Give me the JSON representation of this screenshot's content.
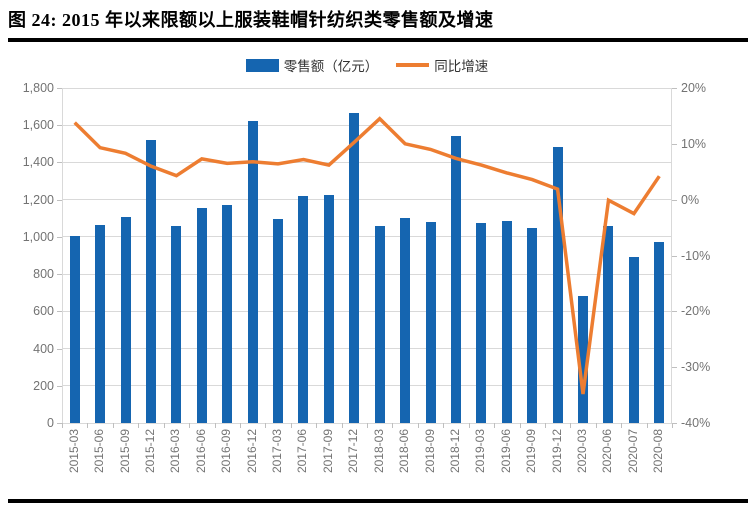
{
  "figure": {
    "title": "图 24: 2015 年以来限额以上服装鞋帽针纺织类零售额及增速"
  },
  "legend": {
    "bar_label": "零售额（亿元）",
    "line_label": "同比增速"
  },
  "colors": {
    "bar": "#1565b0",
    "line": "#ed7d31",
    "gridline": "#d9d9d9",
    "tick": "#bfbfbf",
    "axis_text": "#737373",
    "title_text": "#000000",
    "rule": "#000000"
  },
  "chart_data": {
    "type": "bar",
    "subtype": "bar+line combo, dual axis",
    "title": "图 24: 2015 年以来限额以上服装鞋帽针纺织类零售额及增速",
    "categories": [
      "2015-03",
      "2015-06",
      "2015-09",
      "2015-12",
      "2016-03",
      "2016-06",
      "2016-09",
      "2016-12",
      "2017-03",
      "2017-06",
      "2017-09",
      "2017-12",
      "2018-03",
      "2018-06",
      "2018-09",
      "2018-12",
      "2019-03",
      "2019-06",
      "2019-09",
      "2019-12",
      "2020-03",
      "2020-06",
      "2020-07",
      "2020-08"
    ],
    "series": [
      {
        "name": "零售额（亿元）",
        "type": "bar",
        "yaxis": "left",
        "values": [
          1005,
          1065,
          1105,
          1520,
          1060,
          1155,
          1170,
          1625,
          1095,
          1220,
          1225,
          1665,
          1060,
          1100,
          1080,
          1540,
          1075,
          1085,
          1050,
          1485,
          685,
          1060,
          890,
          970
        ]
      },
      {
        "name": "同比增速",
        "type": "line",
        "yaxis": "right",
        "unit": "%",
        "values": [
          13.8,
          9.3,
          8.3,
          6.0,
          4.3,
          7.3,
          6.5,
          6.8,
          6.4,
          7.2,
          6.2,
          10.3,
          14.5,
          10.0,
          9.0,
          7.4,
          6.2,
          4.8,
          3.6,
          1.9,
          -34.8,
          -0.1,
          -2.5,
          4.2
        ]
      }
    ],
    "left_axis": {
      "min": 0,
      "max": 1800,
      "step": 200,
      "labels": [
        "0",
        "200",
        "400",
        "600",
        "800",
        "1,000",
        "1,200",
        "1,400",
        "1,600",
        "1,800"
      ]
    },
    "right_axis": {
      "min": -40,
      "max": 20,
      "step": 10,
      "labels": [
        "-40%",
        "-30%",
        "-20%",
        "-10%",
        "0%",
        "10%",
        "20%"
      ]
    },
    "grid": "horizontal",
    "legend_position": "top"
  }
}
